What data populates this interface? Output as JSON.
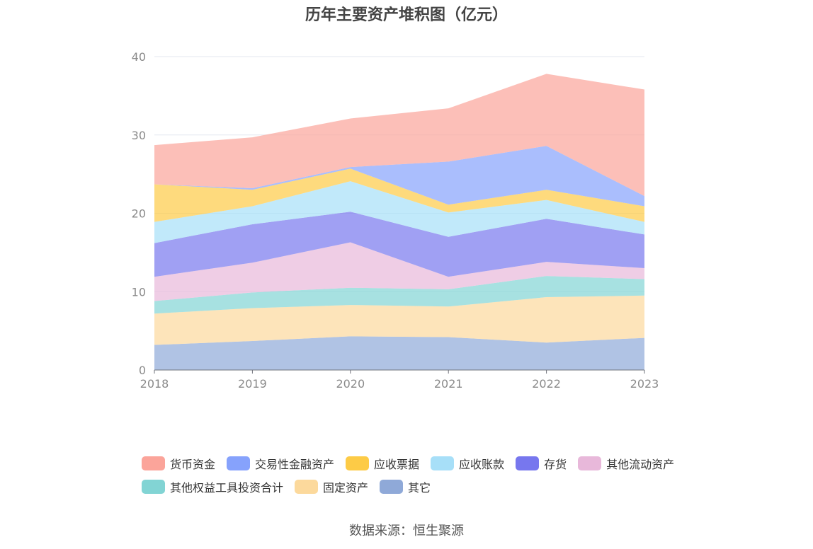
{
  "chart_data": {
    "type": "area",
    "stacked": true,
    "title": "历年主要资产堆积图（亿元）",
    "x": [
      "2018",
      "2019",
      "2020",
      "2021",
      "2022",
      "2023"
    ],
    "ylim": [
      0,
      40
    ],
    "yticks": [
      0,
      10,
      20,
      30,
      40
    ],
    "grid": true,
    "legend_position": "bottom",
    "series": [
      {
        "name": "其它",
        "color": "#8fa9d8",
        "values": [
          3.2,
          3.7,
          4.3,
          4.2,
          3.5,
          4.1
        ]
      },
      {
        "name": "固定资产",
        "color": "#fcd99c",
        "values": [
          4.0,
          4.2,
          4.0,
          3.9,
          5.8,
          5.4
        ]
      },
      {
        "name": "其他权益工具投资合计",
        "color": "#82d4d4",
        "values": [
          1.6,
          2.0,
          2.2,
          2.2,
          2.7,
          2.1
        ]
      },
      {
        "name": "其他流动资产",
        "color": "#e8b8da",
        "values": [
          3.1,
          3.8,
          5.8,
          1.6,
          1.8,
          1.4
        ]
      },
      {
        "name": "存货",
        "color": "#7777ee",
        "values": [
          4.3,
          4.9,
          3.9,
          5.1,
          5.5,
          4.3
        ]
      },
      {
        "name": "应收账款",
        "color": "#a7dff8",
        "values": [
          2.7,
          2.3,
          3.9,
          3.1,
          2.4,
          1.6
        ]
      },
      {
        "name": "应收票据",
        "color": "#fdcb46",
        "values": [
          4.8,
          2.1,
          1.6,
          1.0,
          1.3,
          2.0
        ]
      },
      {
        "name": "交易性金融资产",
        "color": "#86a2fc",
        "values": [
          0.0,
          0.2,
          0.2,
          5.5,
          5.6,
          1.3
        ]
      },
      {
        "name": "货币资金",
        "color": "#fba49a",
        "values": [
          5.0,
          6.5,
          6.2,
          6.8,
          9.2,
          13.6
        ]
      }
    ]
  },
  "legend": {
    "rows": [
      [
        "货币资金",
        "交易性金融资产",
        "应收票据",
        "应收账款",
        "存货",
        "其他流动资产"
      ],
      [
        "其他权益工具投资合计",
        "固定资产",
        "其它"
      ]
    ]
  },
  "source": "数据来源：恒生聚源"
}
